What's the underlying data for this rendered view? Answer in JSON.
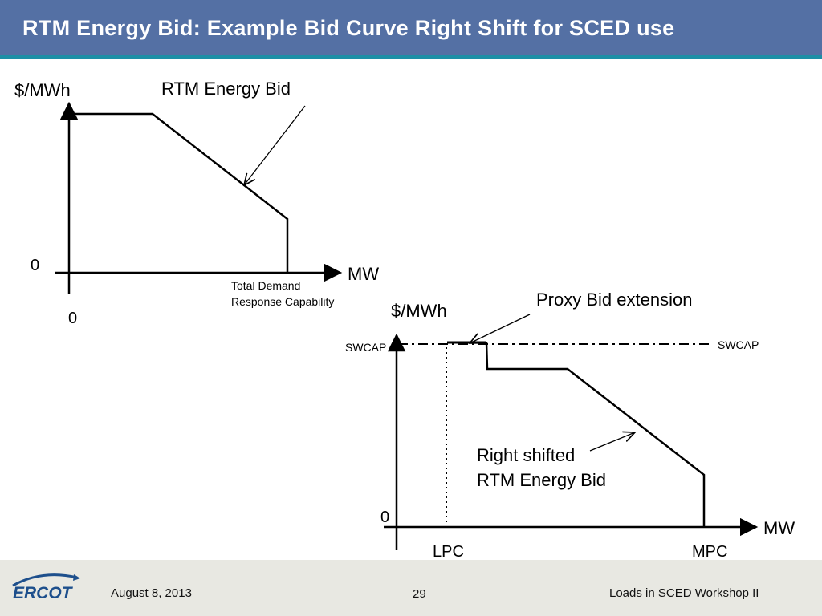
{
  "header": {
    "title": "RTM Energy Bid: Example Bid Curve Right Shift for SCED use"
  },
  "diagram1": {
    "y_axis_label": "$/MWh",
    "x_axis_label": "MW",
    "zero_y": "0",
    "zero_x": "0",
    "curve_label": "RTM Energy Bid",
    "end_label_line1": "Total Demand",
    "end_label_line2": "Response Capability"
  },
  "diagram2": {
    "y_axis_label": "$/MWh",
    "x_axis_label": "MW",
    "zero_y": "0",
    "swcap_left": "SWCAP",
    "swcap_right": "SWCAP",
    "proxy_label": "Proxy Bid extension",
    "curve_label_line1": "Right shifted",
    "curve_label_line2": "RTM Energy Bid",
    "lpc_label": "LPC",
    "mpc_label": "MPC"
  },
  "footer": {
    "logo_text": "ERCOT",
    "date": "August 8, 2013",
    "page_number": "29",
    "event": "Loads in SCED Workshop II"
  },
  "colors": {
    "title_bg": "#5470a4",
    "title_accent": "#1d8fa6",
    "footer_bg": "#e8e8e2",
    "logo_blue": "#1d4f8c"
  }
}
